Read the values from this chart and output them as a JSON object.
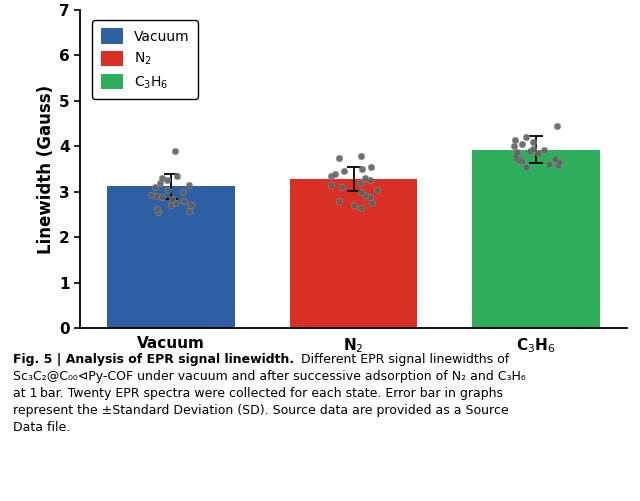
{
  "categories": [
    "Vacuum",
    "N$_2$",
    "C$_3$H$_6$"
  ],
  "bar_values": [
    3.12,
    3.28,
    3.93
  ],
  "bar_colors": [
    "#2E5FA3",
    "#D93025",
    "#2EAD5C"
  ],
  "error_values": [
    0.28,
    0.27,
    0.3
  ],
  "ylabel": "Linewidth (Gauss)",
  "ylim": [
    0,
    7
  ],
  "yticks": [
    0,
    1,
    2,
    3,
    4,
    5,
    6,
    7
  ],
  "legend_labels": [
    "Vacuum",
    "N$_2$",
    "C$_3$H$_6$"
  ],
  "legend_colors": [
    "#2E5FA3",
    "#D93025",
    "#2EAD5C"
  ],
  "scatter_data": {
    "Vacuum": [
      2.55,
      2.58,
      2.62,
      2.7,
      2.72,
      2.75,
      2.8,
      2.85,
      2.88,
      2.9,
      2.93,
      3.0,
      3.05,
      3.1,
      3.15,
      3.2,
      3.25,
      3.3,
      3.35,
      3.9
    ],
    "N2": [
      2.65,
      2.7,
      2.75,
      2.8,
      2.88,
      2.92,
      3.0,
      3.05,
      3.1,
      3.15,
      3.2,
      3.25,
      3.3,
      3.35,
      3.4,
      3.45,
      3.5,
      3.55,
      3.75,
      3.78
    ],
    "C3H6": [
      3.55,
      3.6,
      3.62,
      3.65,
      3.68,
      3.7,
      3.73,
      3.75,
      3.8,
      3.85,
      3.88,
      3.9,
      3.92,
      3.95,
      4.0,
      4.05,
      4.1,
      4.15,
      4.2,
      4.45
    ]
  },
  "caption_bold": "Fig. 5 | Analysis of EPR signal linewidth.",
  "caption_rest": " Different EPR signal linewidths of Sc₃C₂@C₀₀⊲Py-COF under vacuum and after successive adsorption of N₂ and C₃H₆ at 1 bar. Twenty EPR spectra were collected for each state. Error bar in graphs represent the ±Standard Deviation (SD). Source data are provided as a Source Data file.",
  "background_color": "#ffffff",
  "x_positions": [
    0.5,
    1.5,
    2.5
  ],
  "bar_width": 0.7,
  "xlim": [
    0.0,
    3.0
  ]
}
